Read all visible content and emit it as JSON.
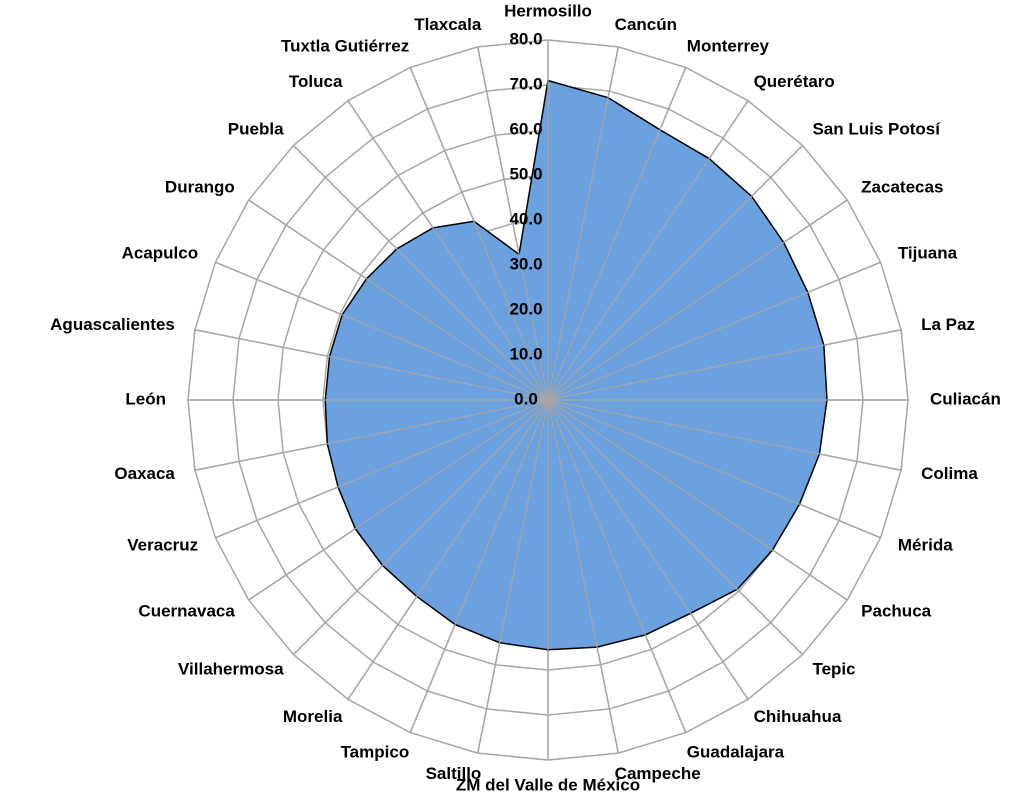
{
  "chart_data": {
    "type": "radar",
    "categories": [
      "Hermosillo",
      "Cancún",
      "Monterrey",
      "Querétaro",
      "San Luis Potosí",
      "Zacatecas",
      "Tijuana",
      "La Paz",
      "Culiacán",
      "Colima",
      "Mérida",
      "Pachuca",
      "Tepic",
      "Chihuahua",
      "Guadalajara",
      "Campeche",
      "ZM del Valle de México",
      "Saltillo",
      "Tampico",
      "Morelia",
      "Villahermosa",
      "Cuernavaca",
      "Veracruz",
      "Oaxaca",
      "León",
      "Aguascalientes",
      "Acapulco",
      "Durango",
      "Puebla",
      "Toluca",
      "Tuxtla Gutiérrez",
      "Tlaxcala"
    ],
    "values": [
      71,
      68.5,
      65,
      64.5,
      64,
      63,
      62.5,
      62.5,
      62,
      61.5,
      60.5,
      60,
      59.5,
      57,
      56.5,
      56,
      55.5,
      55,
      54,
      52.5,
      52,
      51.5,
      50.5,
      50,
      49.5,
      49.5,
      49.5,
      48.5,
      47.5,
      46,
      43,
      33
    ],
    "color": "#6aa1de",
    "ylim": [
      0,
      80
    ],
    "yticks": [
      {
        "value": 0,
        "label": "0.0"
      },
      {
        "value": 10,
        "label": "10.0"
      },
      {
        "value": 20,
        "label": "20.0"
      },
      {
        "value": 30,
        "label": "30.0"
      },
      {
        "value": 40,
        "label": "40.0"
      },
      {
        "value": 50,
        "label": "50.0"
      },
      {
        "value": 60,
        "label": "60.0"
      },
      {
        "value": 70,
        "label": "70.0"
      },
      {
        "value": 80,
        "label": "80.0"
      }
    ],
    "grid": true
  }
}
